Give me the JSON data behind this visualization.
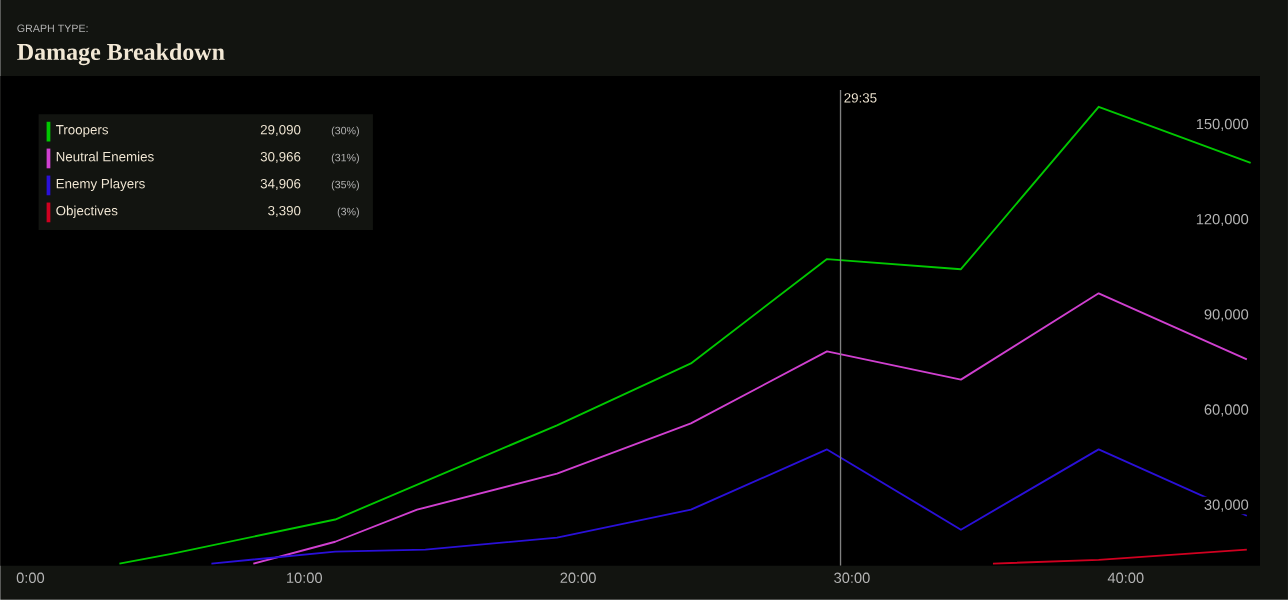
{
  "chart_data": {
    "type": "line",
    "title": "Damage Breakdown",
    "subtitle": "GRAPH TYPE:",
    "xlim": [
      -1.1,
      44.9
    ],
    "ylim": [
      11000,
      161000
    ],
    "xticks": [
      {
        "value": 0,
        "label": "0:00"
      },
      {
        "value": 10,
        "label": "10:00"
      },
      {
        "value": 20,
        "label": "20:00"
      },
      {
        "value": 30,
        "label": "30:00"
      },
      {
        "value": 40,
        "label": "40:00"
      }
    ],
    "yticks": [
      {
        "value": 30000,
        "label": "30,000"
      },
      {
        "value": 60000,
        "label": "60,000"
      },
      {
        "value": 90000,
        "label": "90,000"
      },
      {
        "value": 120000,
        "label": "120,000"
      },
      {
        "value": 150000,
        "label": "150,000"
      }
    ],
    "series": [
      {
        "name": "Troopers",
        "color": "#00c800",
        "x": [
          3.25,
          5.15,
          11.13,
          19.23,
          24.12,
          29.09,
          33.98,
          39.01,
          44.56
        ],
        "values": [
          11700,
          14800,
          25600,
          55300,
          74800,
          107700,
          104500,
          155700,
          138000
        ]
      },
      {
        "name": "Neutral Enemies",
        "color": "#d040d0",
        "x": [
          8.14,
          11.13,
          14.12,
          19.23,
          24.12,
          29.09,
          33.98,
          39.01,
          44.42
        ],
        "values": [
          11700,
          18600,
          28700,
          40100,
          55900,
          78600,
          69700,
          96900,
          76100
        ]
      },
      {
        "name": "Enemy Players",
        "color": "#2a10d8",
        "x": [
          6.61,
          11.13,
          14.42,
          19.23,
          24.12,
          29.09,
          33.98,
          39.01,
          44.42
        ],
        "values": [
          11700,
          15500,
          16100,
          19900,
          28700,
          47700,
          22400,
          47700,
          26800
        ]
      },
      {
        "name": "Objectives",
        "color": "#d00020",
        "x": [
          35.15,
          39.01,
          44.42
        ],
        "values": [
          11700,
          12900,
          16100
        ]
      }
    ],
    "ref_lines": [
      {
        "axis": "x",
        "value": 29.5833,
        "color": "#808080"
      }
    ],
    "annotations": [
      "29,090",
      "(30%)",
      "30,966",
      "(31%)",
      "34,906",
      "(35%)",
      "3,390",
      "(3%)",
      "29:35"
    ],
    "legend": "top left",
    "marker": "none",
    "line_style": "solid",
    "grid": false
  }
}
